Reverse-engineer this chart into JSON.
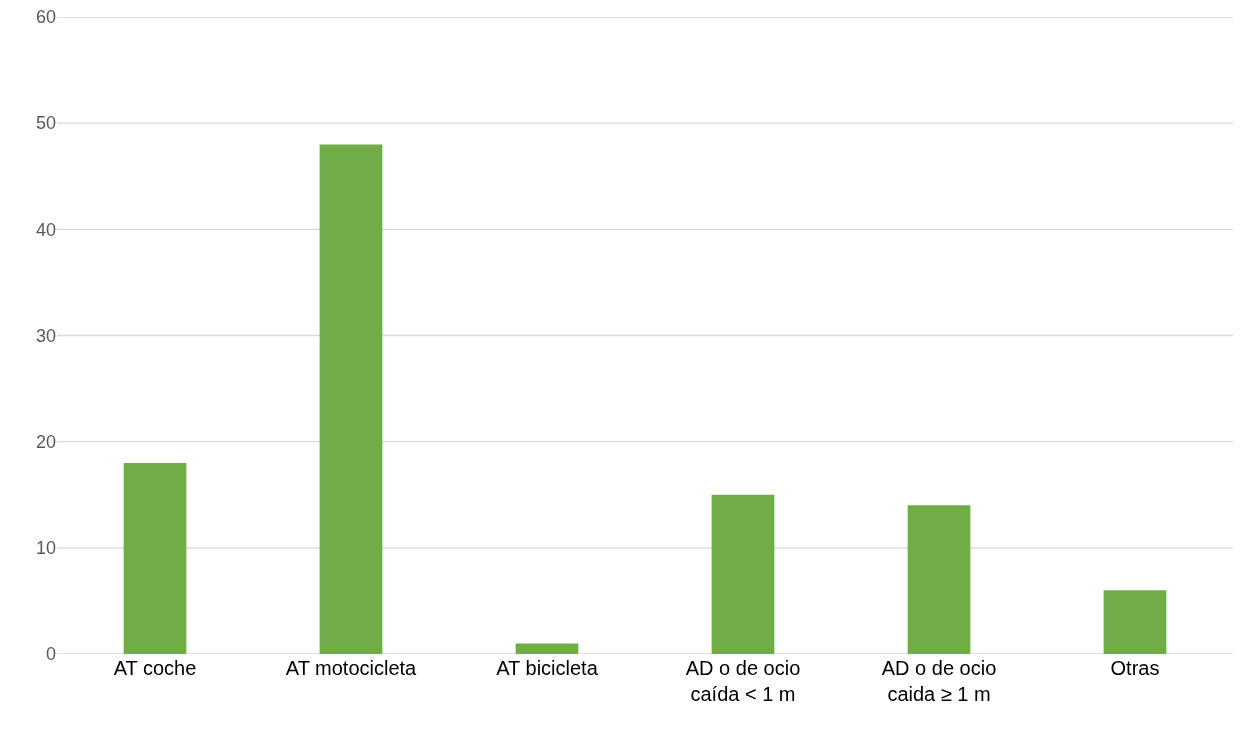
{
  "chart_data": {
    "type": "bar",
    "categories": [
      "AT coche",
      "AT motocicleta",
      "AT bicicleta",
      "AD o de ocio\ncaída < 1 m",
      "AD o de ocio\ncaida ≥ 1 m",
      "Otras"
    ],
    "values": [
      18,
      48,
      1,
      15,
      14,
      6
    ],
    "color": "#70ad47",
    "ylim": [
      0,
      60
    ],
    "yticks": [
      0,
      10,
      20,
      30,
      40,
      50,
      60
    ],
    "grid": "y"
  }
}
